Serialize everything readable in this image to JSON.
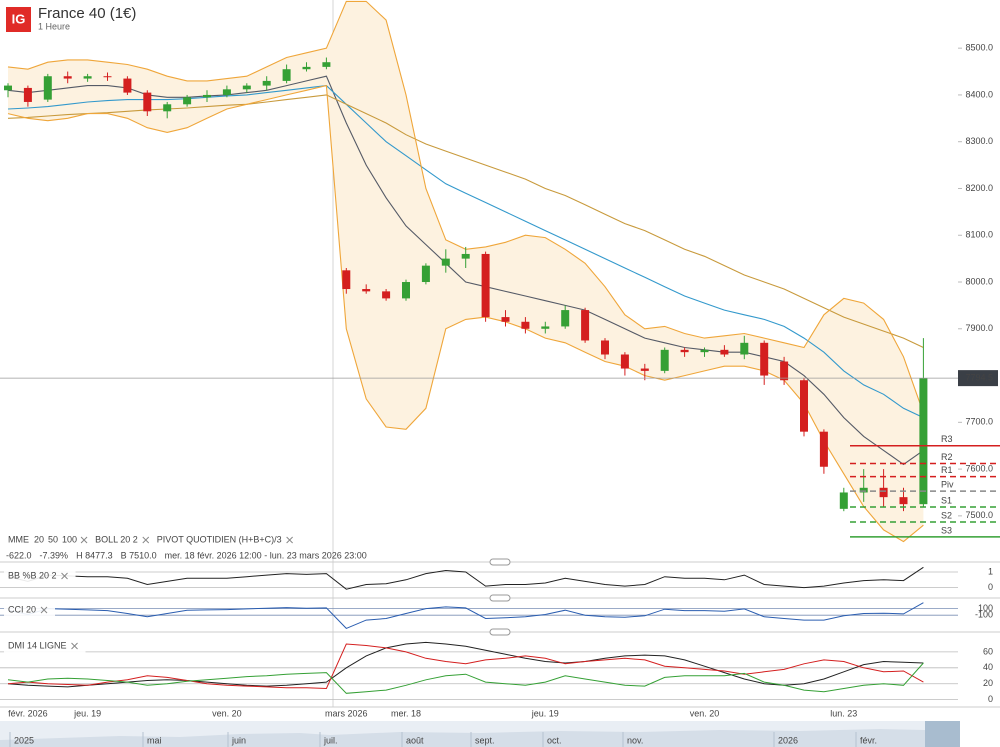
{
  "header": {
    "logo": "IG",
    "title": "France 40 (1€)",
    "subtitle": "1 Heure"
  },
  "chart_data": {
    "type": "candlestick",
    "categories": [
      null,
      "févr. 2026",
      null,
      null,
      "jeu. 19",
      null,
      null,
      null,
      null,
      null,
      null,
      "ven. 20",
      null,
      null,
      null,
      null,
      null,
      "mars 2026",
      null,
      null,
      "mer. 18",
      null,
      null,
      null,
      null,
      null,
      null,
      "jeu. 19",
      null,
      null,
      null,
      null,
      null,
      null,
      null,
      "ven. 20",
      null,
      null,
      null,
      null,
      null,
      null,
      "lun. 23",
      null,
      null,
      null,
      null
    ],
    "open": [
      8410,
      8415,
      8390,
      8440,
      8435,
      8440,
      8435,
      8405,
      8365,
      8380,
      8395,
      8400,
      8412,
      8420,
      8430,
      8455,
      8460,
      8025,
      7985,
      7980,
      7965,
      8000,
      8035,
      8050,
      8060,
      7925,
      7915,
      7900,
      7905,
      7940,
      7875,
      7845,
      7815,
      7810,
      7855,
      7850,
      7855,
      7845,
      7870,
      7830,
      7790,
      7680,
      7515,
      7550,
      7560,
      7540,
      7525
    ],
    "high": [
      8425,
      8420,
      8445,
      8450,
      8445,
      8448,
      8440,
      8410,
      8385,
      8400,
      8410,
      8420,
      8425,
      8440,
      8465,
      8470,
      8480,
      8030,
      7995,
      7985,
      8005,
      8040,
      8070,
      8075,
      8065,
      7940,
      7925,
      7915,
      7950,
      7945,
      7880,
      7850,
      7825,
      7860,
      7860,
      7860,
      7865,
      7885,
      7875,
      7840,
      7795,
      7685,
      7560,
      7600,
      7600,
      7560,
      7880
    ],
    "low": [
      8395,
      8375,
      8385,
      8425,
      8428,
      8430,
      8400,
      8355,
      8350,
      8375,
      8385,
      8395,
      8405,
      8410,
      8425,
      8450,
      8455,
      7975,
      7975,
      7960,
      7960,
      7995,
      8020,
      8030,
      7915,
      7905,
      7890,
      7890,
      7900,
      7870,
      7835,
      7800,
      7790,
      7805,
      7840,
      7840,
      7840,
      7835,
      7780,
      7780,
      7670,
      7590,
      7510,
      7530,
      7520,
      7510,
      7520
    ],
    "close": [
      8420,
      8385,
      8440,
      8435,
      8440,
      8438,
      8405,
      8365,
      8380,
      8395,
      8400,
      8412,
      8420,
      8430,
      8455,
      8460,
      8470,
      7985,
      7980,
      7965,
      8000,
      8035,
      8050,
      8060,
      7925,
      7915,
      7900,
      7905,
      7940,
      7875,
      7845,
      7815,
      7810,
      7855,
      7850,
      7855,
      7845,
      7870,
      7800,
      7790,
      7680,
      7605,
      7550,
      7560,
      7540,
      7525,
      7794.5
    ],
    "up_color": "#35a035",
    "down_color": "#d41f1f",
    "ylim": [
      7427,
      8603
    ],
    "yticks": [
      {
        "value": 7500,
        "label": "7500.0"
      },
      {
        "value": 7600,
        "label": "7600.0"
      },
      {
        "value": 7700,
        "label": "7700.0"
      },
      {
        "value": 7800,
        "label": "7800.0"
      },
      {
        "value": 7900,
        "label": "7900.0"
      },
      {
        "value": 8000,
        "label": "8000.0"
      },
      {
        "value": 8100,
        "label": "8100.0"
      },
      {
        "value": 8200,
        "label": "8200.0"
      },
      {
        "value": 8300,
        "label": "8300.0"
      },
      {
        "value": 8400,
        "label": "8400.0"
      },
      {
        "value": 8500,
        "label": "8500.0"
      }
    ],
    "ma_label": "MME",
    "boll_label": "BOLL 20 2",
    "pivot_label": "PIVOT QUOTIDIEN (H+B+C)/3",
    "series": [
      {
        "name": "20",
        "color": "#555a66",
        "values": [
          8410,
          8405,
          8410,
          8415,
          8420,
          8420,
          8415,
          8400,
          8395,
          8395,
          8398,
          8400,
          8405,
          8410,
          8420,
          8430,
          8440,
          8340,
          8250,
          8180,
          8120,
          8080,
          8040,
          8000,
          7990,
          7980,
          7970,
          7960,
          7950,
          7940,
          7920,
          7900,
          7880,
          7870,
          7860,
          7855,
          7850,
          7850,
          7840,
          7830,
          7800,
          7760,
          7710,
          7670,
          7640,
          7610,
          7640
        ]
      },
      {
        "name": "50",
        "color": "#3399cc",
        "values": [
          8370,
          8372,
          8375,
          8380,
          8385,
          8388,
          8390,
          8390,
          8390,
          8392,
          8395,
          8398,
          8400,
          8405,
          8410,
          8415,
          8420,
          8380,
          8340,
          8300,
          8270,
          8240,
          8210,
          8190,
          8170,
          8150,
          8130,
          8110,
          8090,
          8070,
          8050,
          8030,
          8010,
          7990,
          7970,
          7955,
          7940,
          7930,
          7920,
          7905,
          7880,
          7850,
          7810,
          7780,
          7760,
          7730,
          7710
        ]
      },
      {
        "name": "100",
        "color": "#c89a3c",
        "values": [
          8350,
          8352,
          8355,
          8358,
          8360,
          8362,
          8365,
          8368,
          8370,
          8372,
          8375,
          8378,
          8380,
          8385,
          8390,
          8395,
          8400,
          8380,
          8360,
          8340,
          8315,
          8295,
          8280,
          8265,
          8250,
          8235,
          8220,
          8200,
          8185,
          8165,
          8145,
          8125,
          8110,
          8090,
          8070,
          8055,
          8035,
          8015,
          8000,
          7985,
          7965,
          7945,
          7925,
          7910,
          7895,
          7880,
          7860
        ]
      },
      {
        "color": "#efa63a",
        "values": [
          8460,
          8455,
          8470,
          8475,
          8475,
          8470,
          8465,
          8455,
          8440,
          8430,
          8430,
          8435,
          8440,
          8460,
          8480,
          8490,
          8500,
          8600,
          8600,
          8560,
          8400,
          8200,
          8090,
          8070,
          8075,
          8085,
          8100,
          8095,
          8070,
          8040,
          7990,
          7930,
          7900,
          7905,
          7890,
          7880,
          7885,
          7890,
          7880,
          7870,
          7860,
          7930,
          7965,
          7955,
          7920,
          7840,
          7720
        ]
      },
      {
        "color": "#efa63a",
        "values": [
          8360,
          8350,
          8345,
          8350,
          8360,
          8360,
          8350,
          8330,
          8320,
          8330,
          8350,
          8370,
          8380,
          8390,
          8400,
          8410,
          8420,
          7900,
          7750,
          7690,
          7685,
          7730,
          7900,
          7920,
          7925,
          7915,
          7900,
          7880,
          7870,
          7850,
          7830,
          7820,
          7800,
          7790,
          7800,
          7810,
          7820,
          7820,
          7810,
          7790,
          7740,
          7660,
          7590,
          7520,
          7470,
          7445,
          7480
        ]
      }
    ],
    "band_fill": "#fdf2e0",
    "pivots": [
      {
        "label": "R3",
        "value": 7650,
        "color": "#d41f1f",
        "dashed": false
      },
      {
        "label": "R2",
        "value": 7612,
        "color": "#d41f1f",
        "dashed": true
      },
      {
        "label": "R1",
        "value": 7584,
        "color": "#d41f1f",
        "dashed": true
      },
      {
        "label": "Piv",
        "value": 7553,
        "color": "#888888",
        "dashed": true
      },
      {
        "label": "S1",
        "value": 7519,
        "color": "#35a035",
        "dashed": true
      },
      {
        "label": "S2",
        "value": 7487,
        "color": "#35a035",
        "dashed": true
      },
      {
        "label": "S3",
        "value": 7455,
        "color": "#35a035",
        "dashed": false
      }
    ],
    "info": [
      "-622.0",
      "-7.39%",
      "H 8477.3",
      "B 7510.0",
      "mer. 18 févr. 2026 12:00 - lun. 23 mars 2026 23:00"
    ],
    "indicators": [
      {
        "title": "BB %B 20 2",
        "ylim": [
          -0.6,
          1.45
        ],
        "yticks": [
          0,
          1
        ],
        "series": [
          {
            "color": "#222222",
            "values": [
              0.7,
              0.4,
              0.8,
              0.75,
              0.7,
              0.7,
              0.6,
              0.2,
              0.4,
              0.6,
              0.6,
              0.6,
              0.7,
              0.8,
              0.9,
              0.85,
              0.9,
              -0.1,
              0.2,
              0.25,
              0.5,
              0.9,
              1.1,
              1.0,
              0.1,
              0.2,
              0.2,
              0.3,
              0.6,
              0.4,
              0.2,
              0.1,
              0.2,
              0.7,
              0.6,
              0.6,
              0.5,
              0.8,
              0.2,
              0.1,
              0.0,
              0.1,
              0.3,
              0.45,
              0.5,
              0.45,
              1.3
            ]
          }
        ]
      },
      {
        "title": "CCI 20",
        "ylim": [
          -550,
          300
        ],
        "yticks": [
          -100,
          100
        ],
        "series": [
          {
            "color": "#2a5db0",
            "values": [
              50,
              -80,
              100,
              80,
              60,
              40,
              -50,
              -150,
              -50,
              50,
              60,
              70,
              90,
              110,
              130,
              110,
              120,
              -500,
              -250,
              -200,
              -50,
              100,
              150,
              120,
              -200,
              -180,
              -150,
              -80,
              50,
              -100,
              -150,
              -160,
              -120,
              80,
              40,
              40,
              20,
              90,
              -150,
              -200,
              -250,
              -250,
              -120,
              -50,
              -40,
              -60,
              280
            ]
          }
        ]
      },
      {
        "title": "DMI 14 LIGNE",
        "ylim": [
          -8,
          80
        ],
        "yticks": [
          0,
          20,
          40,
          60
        ],
        "series": [
          {
            "color": "#222222",
            "values": [
              20,
              18,
              17,
              16,
              18,
              20,
              22,
              24,
              25,
              24,
              22,
              20,
              18,
              17,
              18,
              20,
              22,
              40,
              55,
              65,
              70,
              72,
              70,
              67,
              62,
              57,
              52,
              48,
              46,
              48,
              52,
              55,
              56,
              55,
              50,
              42,
              34,
              26,
              20,
              18,
              20,
              26,
              35,
              44,
              48,
              47,
              46
            ]
          },
          {
            "color": "#d41f1f",
            "values": [
              20,
              22,
              20,
              19,
              18,
              22,
              25,
              30,
              28,
              24,
              20,
              18,
              17,
              16,
              15,
              15,
              14,
              70,
              68,
              65,
              60,
              52,
              48,
              45,
              50,
              52,
              55,
              52,
              45,
              48,
              50,
              52,
              50,
              42,
              40,
              38,
              36,
              32,
              35,
              38,
              45,
              50,
              48,
              40,
              35,
              36,
              22
            ]
          },
          {
            "color": "#35a035",
            "values": [
              25,
              22,
              26,
              27,
              26,
              24,
              22,
              18,
              20,
              23,
              25,
              27,
              29,
              30,
              32,
              33,
              34,
              8,
              10,
              12,
              18,
              25,
              30,
              32,
              22,
              20,
              18,
              22,
              30,
              26,
              22,
              18,
              17,
              28,
              30,
              30,
              30,
              33,
              22,
              18,
              12,
              10,
              14,
              18,
              20,
              18,
              46
            ]
          }
        ]
      }
    ]
  },
  "navigator": {
    "labels": [
      "2025",
      "mai",
      "juin",
      "juil.",
      "août",
      "sept.",
      "oct.",
      "nov.",
      "2026",
      "févr."
    ]
  }
}
